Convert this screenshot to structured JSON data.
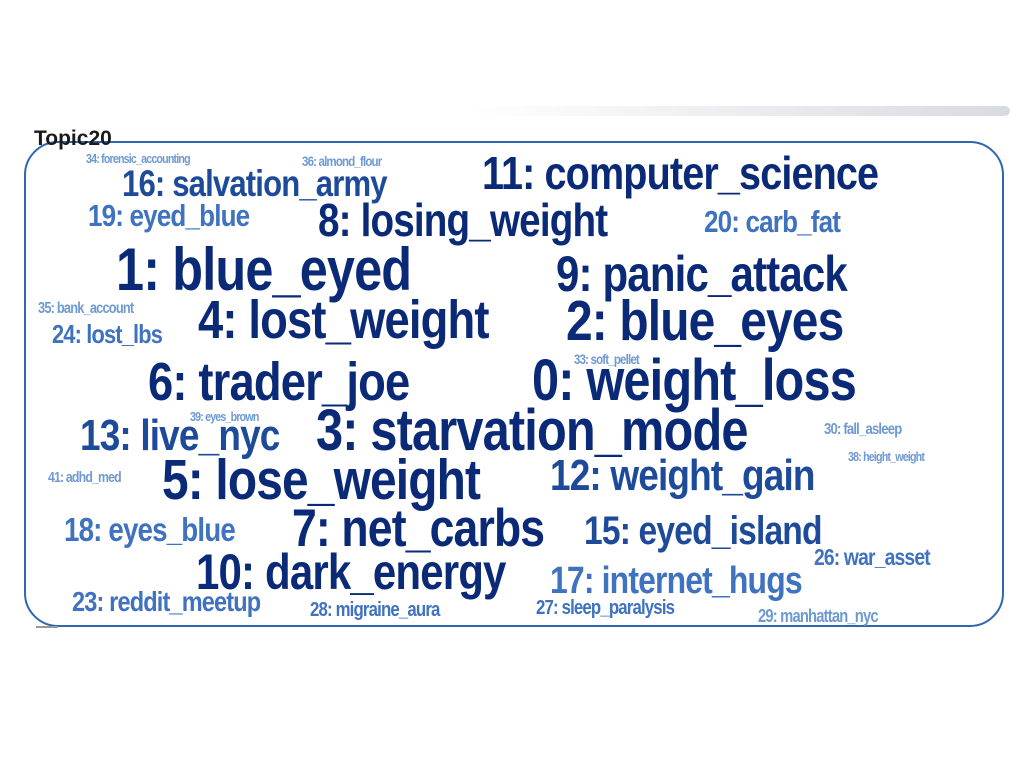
{
  "title": "Topic20",
  "colors": {
    "frame": "#2f66b2",
    "dark": "#0a2a78",
    "mid": "#1e4a9a",
    "light": "#3f72bf",
    "pale": "#6e9ad3"
  },
  "words": [
    {
      "id": "w11",
      "text": "11: computer_science"
    },
    {
      "id": "w8",
      "text": "8: losing_weight"
    },
    {
      "id": "w16",
      "text": "16: salvation_army"
    },
    {
      "id": "w19",
      "text": "19: eyed_blue"
    },
    {
      "id": "w20",
      "text": "20: carb_fat"
    },
    {
      "id": "w1",
      "text": "1: blue_eyed"
    },
    {
      "id": "w9",
      "text": "9: panic_attack"
    },
    {
      "id": "w4",
      "text": "4: lost_weight"
    },
    {
      "id": "w2",
      "text": "2: blue_eyes"
    },
    {
      "id": "w24",
      "text": "24: lost_lbs"
    },
    {
      "id": "w35",
      "text": "35: bank_account"
    },
    {
      "id": "w6",
      "text": "6: trader_joe"
    },
    {
      "id": "w0",
      "text": "0: weight_loss"
    },
    {
      "id": "w33",
      "text": "33: soft_pellet"
    },
    {
      "id": "w13",
      "text": "13: live_nyc"
    },
    {
      "id": "w3",
      "text": "3: starvation_mode"
    },
    {
      "id": "w39",
      "text": "39: eyes_brown"
    },
    {
      "id": "w30",
      "text": "30: fall_asleep"
    },
    {
      "id": "w38",
      "text": "38: height_weight"
    },
    {
      "id": "w5",
      "text": "5: lose_weight"
    },
    {
      "id": "w12",
      "text": "12: weight_gain"
    },
    {
      "id": "w41",
      "text": "41: adhd_med"
    },
    {
      "id": "w18",
      "text": "18: eyes_blue"
    },
    {
      "id": "w7",
      "text": "7: net_carbs"
    },
    {
      "id": "w15",
      "text": "15: eyed_island"
    },
    {
      "id": "w10",
      "text": "10: dark_energy"
    },
    {
      "id": "w26",
      "text": "26: war_asset"
    },
    {
      "id": "w17",
      "text": "17: internet_hugs"
    },
    {
      "id": "w23",
      "text": "23: reddit_meetup"
    },
    {
      "id": "w28",
      "text": "28: migraine_aura"
    },
    {
      "id": "w27",
      "text": "27: sleep_paralysis"
    },
    {
      "id": "w29",
      "text": "29: manhattan_nyc"
    },
    {
      "id": "w34",
      "text": "34: forensic_accounting"
    },
    {
      "id": "w36",
      "text": "36: almond_flour"
    }
  ]
}
